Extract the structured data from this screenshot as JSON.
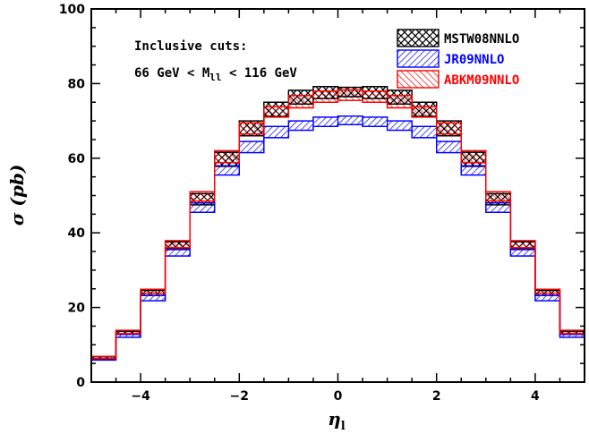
{
  "chart_data": {
    "type": "histogram",
    "xlabel": "η",
    "xlabel_sub": "l",
    "ylabel": "σ (pb)",
    "xlim": [
      -5,
      5
    ],
    "ylim": [
      0,
      100
    ],
    "xticks": [
      -4,
      -2,
      0,
      2,
      4
    ],
    "xtick_labels": [
      "−4",
      "−2",
      "0",
      "2",
      "4"
    ],
    "yticks": [
      0,
      20,
      40,
      60,
      80,
      100
    ],
    "ytick_labels": [
      "0",
      "20",
      "40",
      "60",
      "80",
      "100"
    ],
    "grid": false,
    "legend_position": "top-right",
    "bin_edges": [
      -5,
      -4.5,
      -4,
      -3.5,
      -3,
      -2.5,
      -2,
      -1.5,
      -1,
      -0.5,
      0,
      0.5,
      1,
      1.5,
      2,
      2.5,
      3,
      3.5,
      4,
      4.5,
      5
    ],
    "series": [
      {
        "name": "MSTW08NNLO",
        "color": "#000000",
        "hatch": "crosshatch",
        "low": [
          6.2,
          12.8,
          23.2,
          35.8,
          47.5,
          57.8,
          66.0,
          71.2,
          74.5,
          76.0,
          76.5,
          76.0,
          74.5,
          71.2,
          66.0,
          57.8,
          47.5,
          35.8,
          23.2,
          12.8
        ],
        "high": [
          6.8,
          13.6,
          24.6,
          37.6,
          50.5,
          61.6,
          70.0,
          75.0,
          78.2,
          79.2,
          79.0,
          79.2,
          78.2,
          75.0,
          70.0,
          61.6,
          50.5,
          37.6,
          24.6,
          13.6
        ]
      },
      {
        "name": "JR09NNLO",
        "color": "#0000ff",
        "hatch": "hatch-down",
        "low": [
          5.9,
          12.0,
          21.8,
          33.8,
          45.5,
          55.5,
          61.5,
          65.5,
          67.5,
          68.5,
          69.0,
          68.5,
          67.5,
          65.5,
          61.5,
          55.5,
          45.5,
          33.8,
          21.8,
          12.0
        ],
        "high": [
          6.3,
          12.8,
          23.2,
          35.5,
          48.0,
          58.0,
          64.5,
          68.5,
          70.0,
          71.0,
          71.3,
          71.0,
          70.0,
          68.5,
          64.5,
          58.0,
          48.0,
          35.5,
          23.2,
          12.8
        ]
      },
      {
        "name": "ABKM09NNLO",
        "color": "#ff0000",
        "hatch": "hatch-up",
        "low": [
          6.3,
          13.0,
          23.7,
          36.0,
          48.5,
          58.8,
          66.5,
          71.0,
          73.5,
          75.0,
          75.5,
          75.0,
          73.5,
          71.0,
          66.5,
          58.8,
          48.5,
          36.0,
          23.7,
          13.0
        ],
        "high": [
          6.9,
          13.9,
          24.9,
          37.9,
          51.0,
          62.0,
          69.5,
          73.8,
          76.8,
          78.0,
          78.3,
          78.0,
          76.8,
          73.8,
          69.5,
          62.0,
          51.0,
          37.9,
          24.9,
          13.9
        ]
      }
    ],
    "annotations": {
      "line1": "Inclusive cuts:",
      "line2_prefix": "66 GeV < M",
      "line2_sub": "ll",
      "line2_suffix": " < 116 GeV"
    }
  }
}
